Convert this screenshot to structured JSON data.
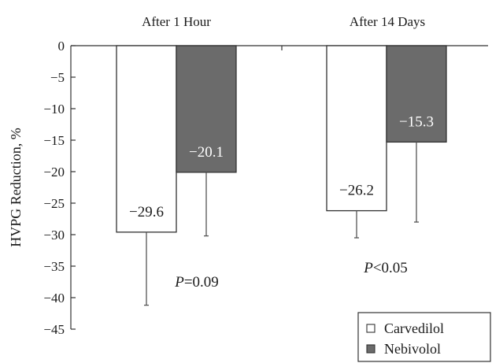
{
  "chart_data": {
    "type": "bar",
    "categories": [
      "After 1 Hour",
      "After 14 Days"
    ],
    "series": [
      {
        "name": "Carvedilol",
        "values": [
          -29.6,
          -26.2
        ],
        "error_low": [
          -41.2,
          -30.5
        ],
        "value_labels": [
          "−29.6",
          "−26.2"
        ],
        "color": "#ffffff"
      },
      {
        "name": "Nebivolol",
        "values": [
          -20.1,
          -15.3
        ],
        "error_low": [
          -30.2,
          -28.0
        ],
        "value_labels": [
          "−20.1",
          "−15.3"
        ],
        "color": "#6b6b6b"
      }
    ],
    "ylabel": "HVPG Reduction, %",
    "ylim": [
      -45,
      0
    ],
    "yticks": [
      0,
      -5,
      -10,
      -15,
      -20,
      -25,
      -30,
      -35,
      -40,
      -45
    ],
    "ytick_labels": [
      "0",
      "−5",
      "−10",
      "−15",
      "−20",
      "−25",
      "−30",
      "−35",
      "−40",
      "−45"
    ],
    "annotations": [
      {
        "group": 0,
        "italic": "P",
        "rest": "=0.09"
      },
      {
        "group": 1,
        "italic": "P",
        "rest": "<0.05"
      }
    ],
    "legend_position": "bottom-right",
    "grid": false
  }
}
